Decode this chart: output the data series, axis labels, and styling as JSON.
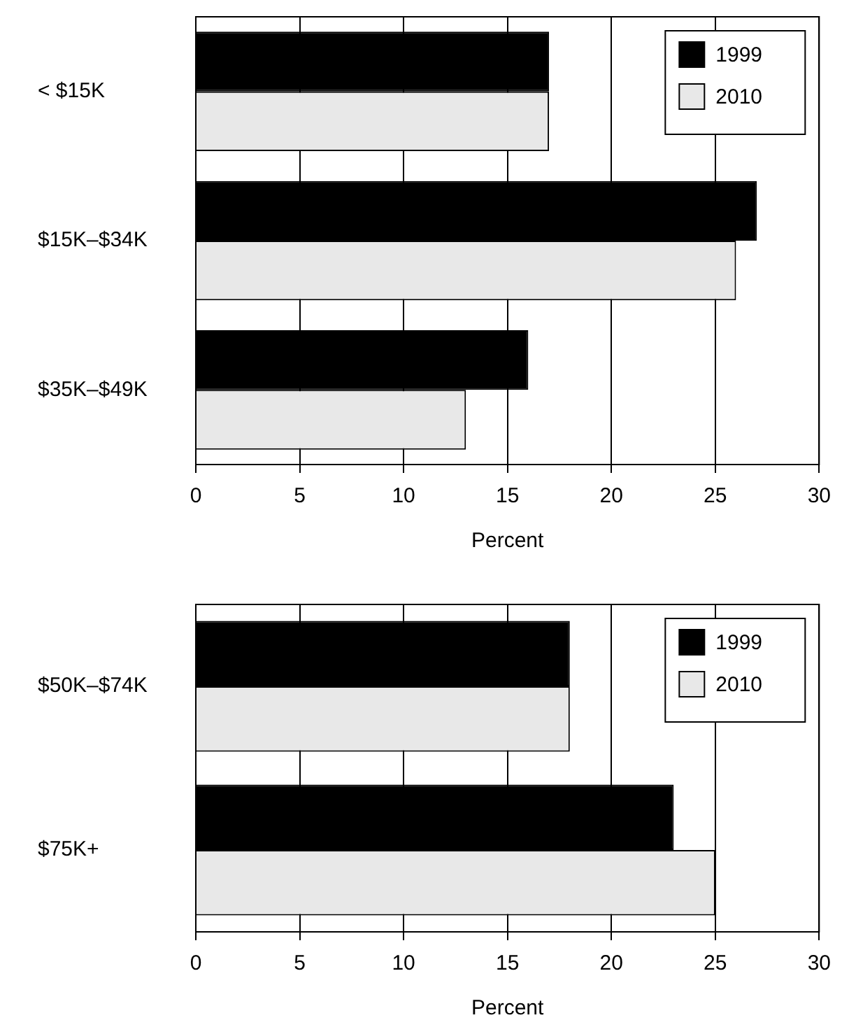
{
  "chart_data": [
    {
      "type": "bar",
      "orientation": "horizontal",
      "categories": [
        "< $15K",
        "$15K–$34K",
        "$35K–$49K"
      ],
      "series": [
        {
          "name": "1999",
          "color": "#000000",
          "values": [
            17,
            27,
            16
          ]
        },
        {
          "name": "2010",
          "color": "#e8e8e8",
          "values": [
            17,
            26,
            13
          ]
        }
      ],
      "xlabel": "Percent",
      "xlim": [
        0,
        30
      ],
      "xticks": [
        0,
        5,
        10,
        15,
        20,
        25,
        30
      ],
      "grid": "x",
      "legend": "top right"
    },
    {
      "type": "bar",
      "orientation": "horizontal",
      "categories": [
        "$50K–$74K",
        "$75K+"
      ],
      "series": [
        {
          "name": "1999",
          "color": "#000000",
          "values": [
            18,
            23
          ]
        },
        {
          "name": "2010",
          "color": "#e8e8e8",
          "values": [
            18,
            25
          ]
        }
      ],
      "xlabel": "Percent",
      "xlim": [
        0,
        30
      ],
      "xticks": [
        0,
        5,
        10,
        15,
        20,
        25,
        30
      ],
      "grid": "x",
      "legend": "top right"
    }
  ]
}
